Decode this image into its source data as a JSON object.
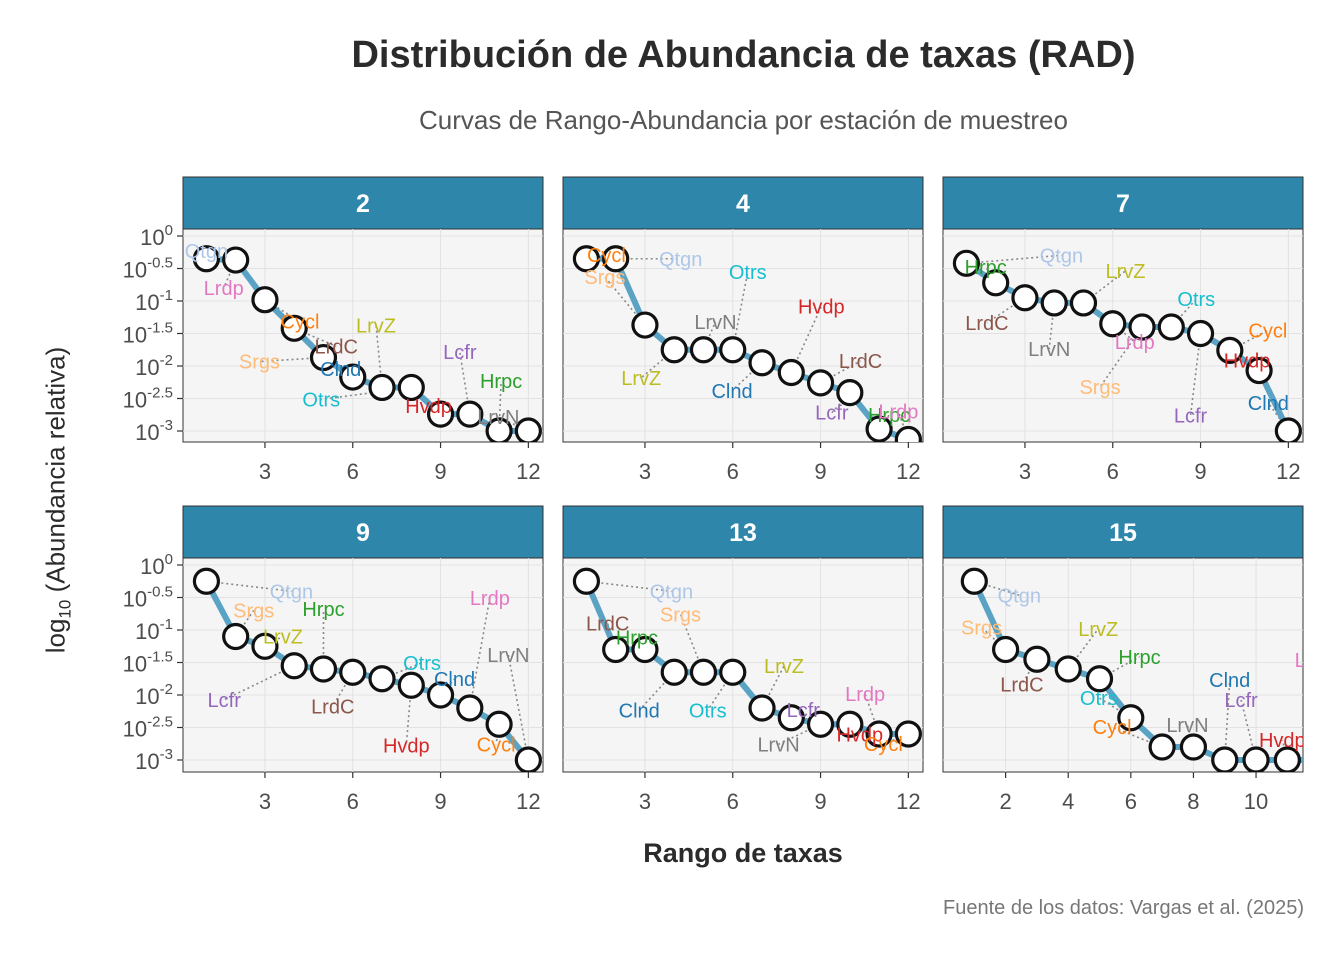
{
  "title": "Distribución de Abundancia de taxas (RAD)",
  "subtitle": "Curvas de Rango-Abundancia por estación de muestreo",
  "ylabel_base": "log",
  "ylabel_sub": "10",
  "ylabel_rest": " (Abundancia relativa)",
  "xlabel": "Rango de taxas",
  "caption": "Fuente de los datos: Vargas et al. (2025)",
  "colors": {
    "strip": "#2e86ab",
    "line": "#5aa3c4",
    "panel_bg": "#f5f5f5",
    "taxa": {
      "Qtgn": "#aec7e8",
      "Cycl": "#ff7f0e",
      "Lrdp": "#e377c2",
      "LrdC": "#8c564b",
      "Srgs": "#ffbb78",
      "Clnd": "#1f77b4",
      "LrvZ": "#bcbd22",
      "Otrs": "#17becf",
      "Hvdp": "#d62728",
      "Lcfr": "#9467bd",
      "Hrpc": "#2ca02c",
      "LrvN": "#7f7f7f"
    }
  },
  "chart_data": {
    "type": "line",
    "facet_by": "estación",
    "y_scale": "log10",
    "ylim": [
      -3.05,
      0.15
    ],
    "yticks": [
      0,
      -0.5,
      -1,
      -1.5,
      -2,
      -2.5,
      -3
    ],
    "ytick_base": "10",
    "panels": [
      {
        "station": "2",
        "xlim": [
          0.2,
          12.5
        ],
        "xticks": [
          3,
          6,
          9,
          12
        ],
        "points": [
          {
            "rank": 1,
            "taxon": "Qtgn",
            "log10": -0.35
          },
          {
            "rank": 2,
            "taxon": "Lrdp",
            "log10": -0.37
          },
          {
            "rank": 3,
            "taxon": "Cycl",
            "log10": -0.98
          },
          {
            "rank": 4,
            "taxon": "LrdC",
            "log10": -1.42
          },
          {
            "rank": 5,
            "taxon": "Srgs",
            "log10": -1.87
          },
          {
            "rank": 6,
            "taxon": "Clnd",
            "log10": -2.17
          },
          {
            "rank": 7,
            "taxon": "LrvZ",
            "log10": -2.33
          },
          {
            "rank": 8,
            "taxon": "Otrs",
            "log10": -2.33
          },
          {
            "rank": 9,
            "taxon": "Hvdp",
            "log10": -2.74
          },
          {
            "rank": 10,
            "taxon": "Lcfr",
            "log10": -2.74
          },
          {
            "rank": 11,
            "taxon": "Hrpc",
            "log10": -3.0
          },
          {
            "rank": 12,
            "taxon": "LrvN",
            "log10": -3.0
          }
        ]
      },
      {
        "station": "4",
        "xlim": [
          0.2,
          12.5
        ],
        "xticks": [
          3,
          6,
          9,
          12
        ],
        "points": [
          {
            "rank": 1,
            "taxon": "Cycl",
            "log10": -0.35
          },
          {
            "rank": 2,
            "taxon": "Qtgn",
            "log10": -0.35
          },
          {
            "rank": 3,
            "taxon": "Srgs",
            "log10": -1.37
          },
          {
            "rank": 4,
            "taxon": "LrvZ",
            "log10": -1.75
          },
          {
            "rank": 5,
            "taxon": "LrvN",
            "log10": -1.75
          },
          {
            "rank": 6,
            "taxon": "Otrs",
            "log10": -1.75
          },
          {
            "rank": 7,
            "taxon": "Clnd",
            "log10": -1.95
          },
          {
            "rank": 8,
            "taxon": "Hvdp",
            "log10": -2.1
          },
          {
            "rank": 9,
            "taxon": "LrdC",
            "log10": -2.26
          },
          {
            "rank": 10,
            "taxon": "Lcfr",
            "log10": -2.41
          },
          {
            "rank": 11,
            "taxon": "Hrpc",
            "log10": -2.97
          },
          {
            "rank": 12,
            "taxon": "Lrdp",
            "log10": -3.13
          }
        ]
      },
      {
        "station": "7",
        "xlim": [
          0.2,
          12.5
        ],
        "xticks": [
          3,
          6,
          9,
          12
        ],
        "points": [
          {
            "rank": 1,
            "taxon": "Qtgn",
            "log10": -0.42
          },
          {
            "rank": 2,
            "taxon": "Hrpc",
            "log10": -0.72
          },
          {
            "rank": 3,
            "taxon": "LrdC",
            "log10": -0.95
          },
          {
            "rank": 4,
            "taxon": "LrvN",
            "log10": -1.03
          },
          {
            "rank": 5,
            "taxon": "LrvZ",
            "log10": -1.03
          },
          {
            "rank": 6,
            "taxon": "Lrdp",
            "log10": -1.35
          },
          {
            "rank": 7,
            "taxon": "Srgs",
            "log10": -1.4
          },
          {
            "rank": 8,
            "taxon": "Otrs",
            "log10": -1.4
          },
          {
            "rank": 9,
            "taxon": "Lcfr",
            "log10": -1.5
          },
          {
            "rank": 10,
            "taxon": "Cycl",
            "log10": -1.76
          },
          {
            "rank": 11,
            "taxon": "Hvdp",
            "log10": -2.07
          },
          {
            "rank": 12,
            "taxon": "Clnd",
            "log10": -3.0
          }
        ]
      },
      {
        "station": "9",
        "xlim": [
          0.2,
          12.5
        ],
        "xticks": [
          3,
          6,
          9,
          12
        ],
        "points": [
          {
            "rank": 1,
            "taxon": "Qtgn",
            "log10": -0.25
          },
          {
            "rank": 2,
            "taxon": "Srgs",
            "log10": -1.1
          },
          {
            "rank": 3,
            "taxon": "LrvZ",
            "log10": -1.25
          },
          {
            "rank": 4,
            "taxon": "Lcfr",
            "log10": -1.55
          },
          {
            "rank": 5,
            "taxon": "Hrpc",
            "log10": -1.6
          },
          {
            "rank": 6,
            "taxon": "LrdC",
            "log10": -1.65
          },
          {
            "rank": 7,
            "taxon": "Otrs",
            "log10": -1.75
          },
          {
            "rank": 8,
            "taxon": "Hvdp",
            "log10": -1.85
          },
          {
            "rank": 9,
            "taxon": "Clnd",
            "log10": -2.0
          },
          {
            "rank": 10,
            "taxon": "Lrdp",
            "log10": -2.2
          },
          {
            "rank": 11,
            "taxon": "Cycl",
            "log10": -2.45
          },
          {
            "rank": 12,
            "taxon": "LrvN",
            "log10": -3.0
          }
        ]
      },
      {
        "station": "13",
        "xlim": [
          0.2,
          12.5
        ],
        "xticks": [
          3,
          6,
          9,
          12
        ],
        "points": [
          {
            "rank": 1,
            "taxon": "Qtgn",
            "log10": -0.25
          },
          {
            "rank": 2,
            "taxon": "LrdC",
            "log10": -1.3
          },
          {
            "rank": 3,
            "taxon": "Hrpc",
            "log10": -1.3
          },
          {
            "rank": 4,
            "taxon": "Clnd",
            "log10": -1.65
          },
          {
            "rank": 5,
            "taxon": "Srgs",
            "log10": -1.65
          },
          {
            "rank": 6,
            "taxon": "Otrs",
            "log10": -1.65
          },
          {
            "rank": 7,
            "taxon": "LrvZ",
            "log10": -2.2
          },
          {
            "rank": 8,
            "taxon": "Lcfr",
            "log10": -2.35
          },
          {
            "rank": 9,
            "taxon": "LrvN",
            "log10": -2.45
          },
          {
            "rank": 10,
            "taxon": "Hvdp",
            "log10": -2.45
          },
          {
            "rank": 11,
            "taxon": "Lrdp",
            "log10": -2.6
          },
          {
            "rank": 12,
            "taxon": "Cycl",
            "log10": -2.6
          }
        ]
      },
      {
        "station": "15",
        "xlim": [
          0.0,
          11.5
        ],
        "xticks": [
          2,
          4,
          6,
          8,
          10
        ],
        "points": [
          {
            "rank": 1,
            "taxon": "Qtgn",
            "log10": -0.25
          },
          {
            "rank": 2,
            "taxon": "Srgs",
            "log10": -1.3
          },
          {
            "rank": 3,
            "taxon": "LrdC",
            "log10": -1.45
          },
          {
            "rank": 4,
            "taxon": "LrvZ",
            "log10": -1.6
          },
          {
            "rank": 5,
            "taxon": "Hrpc",
            "log10": -1.75
          },
          {
            "rank": 6,
            "taxon": "Otrs",
            "log10": -2.35
          },
          {
            "rank": 7,
            "taxon": "Cycl",
            "log10": -2.8
          },
          {
            "rank": 8,
            "taxon": "LrvN",
            "log10": -2.8
          },
          {
            "rank": 9,
            "taxon": "Clnd",
            "log10": -3.0
          },
          {
            "rank": 10,
            "taxon": "Lcfr",
            "log10": -3.0
          },
          {
            "rank": 11,
            "taxon": "Hvdp",
            "log10": -3.0
          },
          {
            "rank": 12,
            "taxon": "Lrdp",
            "log10": -3.0
          }
        ]
      }
    ]
  }
}
